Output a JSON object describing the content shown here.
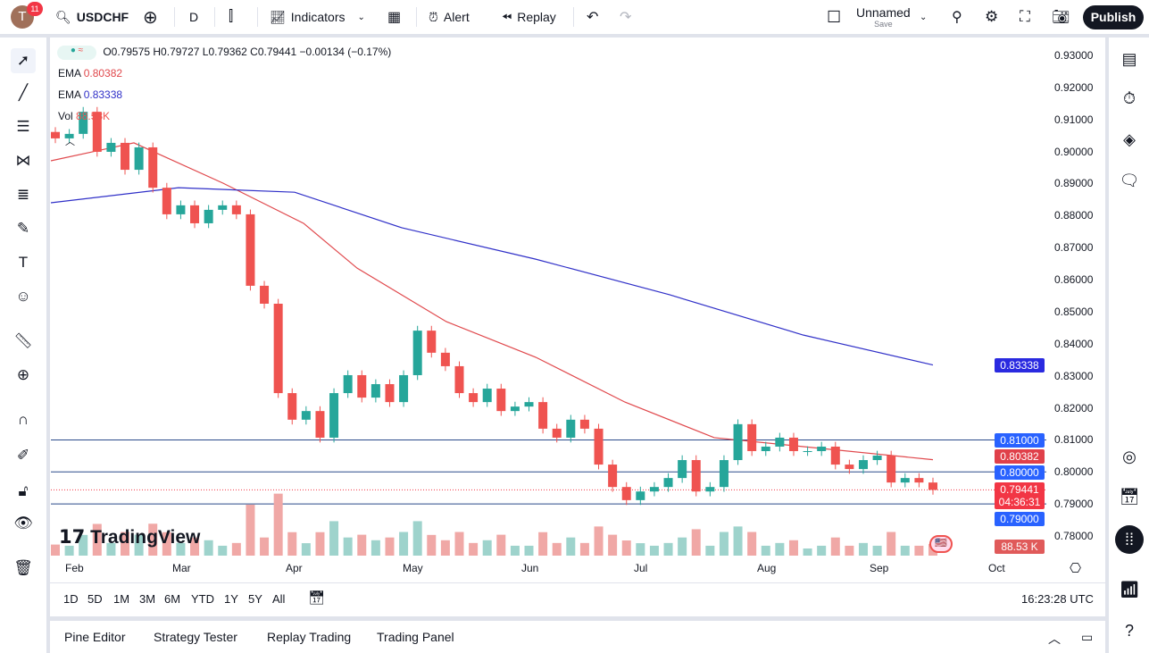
{
  "topbar": {
    "avatar_letter": "T",
    "notifications": "11",
    "symbol": "USDCHF",
    "interval": "D",
    "indicators": "Indicators",
    "alert": "Alert",
    "replay": "Replay",
    "layout_name": "Unnamed",
    "save": "Save",
    "publish": "Publish"
  },
  "legend": {
    "ohlc": "O0.79575 H0.79727 L0.79362 C0.79441 −0.00134 (−0.17%)",
    "ema1_label": "EMA",
    "ema1_value": "0.80382",
    "ema2_label": "EMA",
    "ema2_value": "0.83338",
    "vol_label": "Vol",
    "vol_value": "88.53K"
  },
  "price_axis": {
    "ticks": [
      "0.93000",
      "0.92000",
      "0.91000",
      "0.90000",
      "0.89000",
      "0.88000",
      "0.87000",
      "0.86000",
      "0.85000",
      "0.84000",
      "0.83000",
      "0.82000",
      "0.81000",
      "0.80000",
      "0.79000",
      "0.78000"
    ]
  },
  "price_labels": {
    "ema_slow": "0.83338",
    "level_081": "0.81000",
    "ema_fast": "0.80382",
    "level_080": "0.80000",
    "last_price": "0.79441",
    "countdown": "04:36:31",
    "level_079": "0.79000",
    "volume": "88.53 K"
  },
  "time_axis": {
    "months": [
      "Feb",
      "Mar",
      "Apr",
      "May",
      "Jun",
      "Jul",
      "Aug",
      "Sep",
      "Oct"
    ]
  },
  "timeframes": [
    "1D",
    "5D",
    "1M",
    "3M",
    "6M",
    "YTD",
    "1Y",
    "5Y",
    "All"
  ],
  "clock": "16:23:28 UTC",
  "watermark": "TradingView",
  "bottom_tabs": [
    "Pine Editor",
    "Strategy Tester",
    "Replay Trading",
    "Trading Panel"
  ],
  "colors": {
    "up": "#26a69a",
    "down": "#ef5350",
    "ema_fast": "#e0484c",
    "ema_slow": "#3030c8",
    "level": "#2962ff"
  },
  "chart_data": {
    "type": "candlestick",
    "symbol": "USDCHF",
    "ylim": [
      0.775,
      0.935
    ],
    "approx_closes": [
      0.9041,
      0.9055,
      0.9124,
      0.8999,
      0.9027,
      0.8943,
      0.9013,
      0.8887,
      0.8804,
      0.8832,
      0.8776,
      0.8818,
      0.8832,
      0.8804,
      0.8581,
      0.8525,
      0.8246,
      0.8163,
      0.819,
      0.8107,
      0.8246,
      0.8302,
      0.8232,
      0.8274,
      0.8218,
      0.8302,
      0.8441,
      0.8372,
      0.833,
      0.8246,
      0.8218,
      0.826,
      0.819,
      0.8204,
      0.8218,
      0.8135,
      0.8107,
      0.8163,
      0.8135,
      0.8023,
      0.7953,
      0.7912,
      0.7939,
      0.7953,
      0.7981,
      0.8037,
      0.7939,
      0.7953,
      0.8037,
      0.8149,
      0.8065,
      0.8079,
      0.8107,
      0.8065,
      0.8065,
      0.8079,
      0.8023,
      0.8009,
      0.8037,
      0.8051,
      0.7967,
      0.7981,
      0.7967,
      0.7944
    ],
    "ema_fast_path": [
      0.8971,
      0.9027,
      0.8901,
      0.8776,
      0.8636,
      0.8469,
      0.8358,
      0.8218,
      0.8107,
      0.8079,
      0.80382
    ],
    "ema_slow_path": [
      0.884,
      0.8887,
      0.8873,
      0.8762,
      0.8664,
      0.8553,
      0.8427,
      0.83338
    ],
    "horizontal_levels": [
      0.81,
      0.8,
      0.79
    ],
    "last_price": 0.79441
  }
}
